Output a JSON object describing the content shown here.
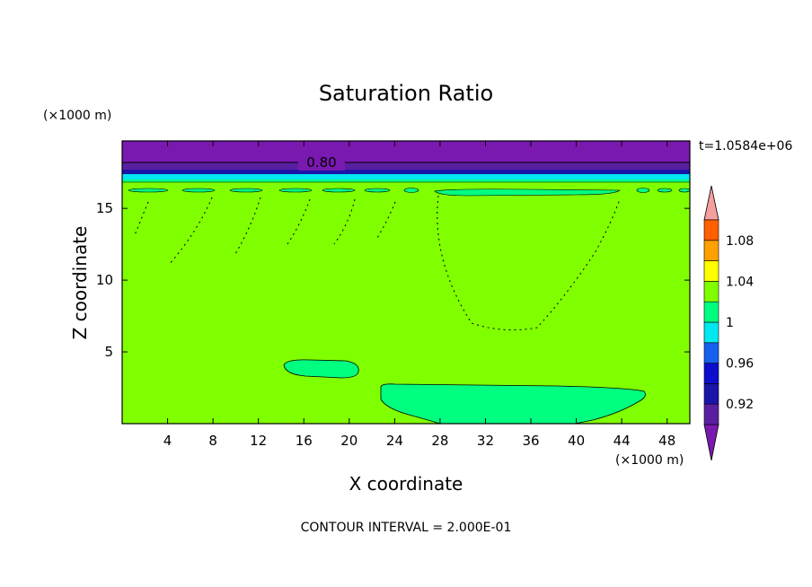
{
  "chart_data": {
    "type": "heatmap",
    "subtype": "filled contour",
    "title": "Saturation Ratio",
    "xlabel": "X coordinate",
    "ylabel": "Z coordinate",
    "x_units": "(×1000 m)",
    "y_units": "(×1000 m)",
    "xlim": [
      0,
      50
    ],
    "ylim": [
      0,
      19.7
    ],
    "x_ticks": [
      4,
      8,
      12,
      16,
      20,
      24,
      28,
      32,
      36,
      40,
      44,
      48
    ],
    "y_ticks": [
      5,
      10,
      15
    ],
    "time_label": "t=1.0584e+06",
    "contour_interval_text": "CONTOUR INTERVAL = 2.000E-01",
    "contour_line_label": "0.80",
    "colorbar": {
      "orientation": "vertical",
      "levels": [
        0.9,
        0.92,
        0.94,
        0.96,
        0.98,
        1.0,
        1.02,
        1.04,
        1.06,
        1.08,
        1.1
      ],
      "labels": [
        "0.92",
        "0.96",
        "1",
        "1.04",
        "1.08"
      ],
      "colors": [
        "#5a1fa0",
        "#1a14a8",
        "#0d0dcc",
        "#1660f0",
        "#00e8f0",
        "#00ff80",
        "#80ff00",
        "#ffff00",
        "#ffa000",
        "#ff6000",
        "#ff1800"
      ],
      "under_color": "#7a19b0",
      "over_color": "#f5a0a0"
    },
    "background_value_color": "#80ff00",
    "regions": [
      {
        "label": "upper band",
        "z_range": [
          17.6,
          19.7
        ],
        "value": "< 0.90"
      },
      {
        "label": "left blob",
        "x_range": [
          14,
          21
        ],
        "z_range": [
          3.3,
          4.6
        ],
        "value": "0.98-1.0"
      },
      {
        "label": "lower blob",
        "x_range": [
          22.8,
          46
        ],
        "z_range": [
          0,
          2.8
        ],
        "value": "0.98-1.0"
      },
      {
        "label": "upper blob",
        "x_range": [
          28,
          44
        ],
        "z_range": [
          16.1,
          16.6
        ],
        "value": "0.98-1.0"
      }
    ]
  },
  "colors": {
    "background": "#ffffff",
    "main_field": "#80ff00",
    "band_purple": "#7a19b0",
    "band_dark": "#5a1fa0",
    "band_blue": "#1a14a8",
    "band_cyan": "#00e8f0",
    "blob": "#00ff80"
  }
}
